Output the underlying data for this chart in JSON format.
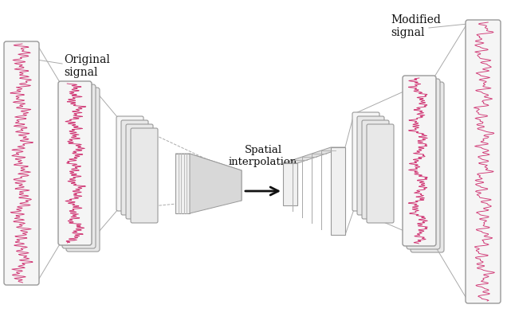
{
  "bg_color": "#ffffff",
  "signal_color": "#cc2266",
  "box_face_color": "#f2f2f2",
  "box_edge_color": "#999999",
  "trap_fill": "#eeeeee",
  "trap_edge": "#aaaaaa",
  "arrow_color": "#111111",
  "label_color": "#111111",
  "original_signal_label": "Original\nsignal",
  "modified_signal_label": "Modified\nsignal",
  "spatial_interp_label": "Spatial\ninterpolation",
  "fig_width": 6.36,
  "fig_height": 4.12,
  "dpi": 100
}
